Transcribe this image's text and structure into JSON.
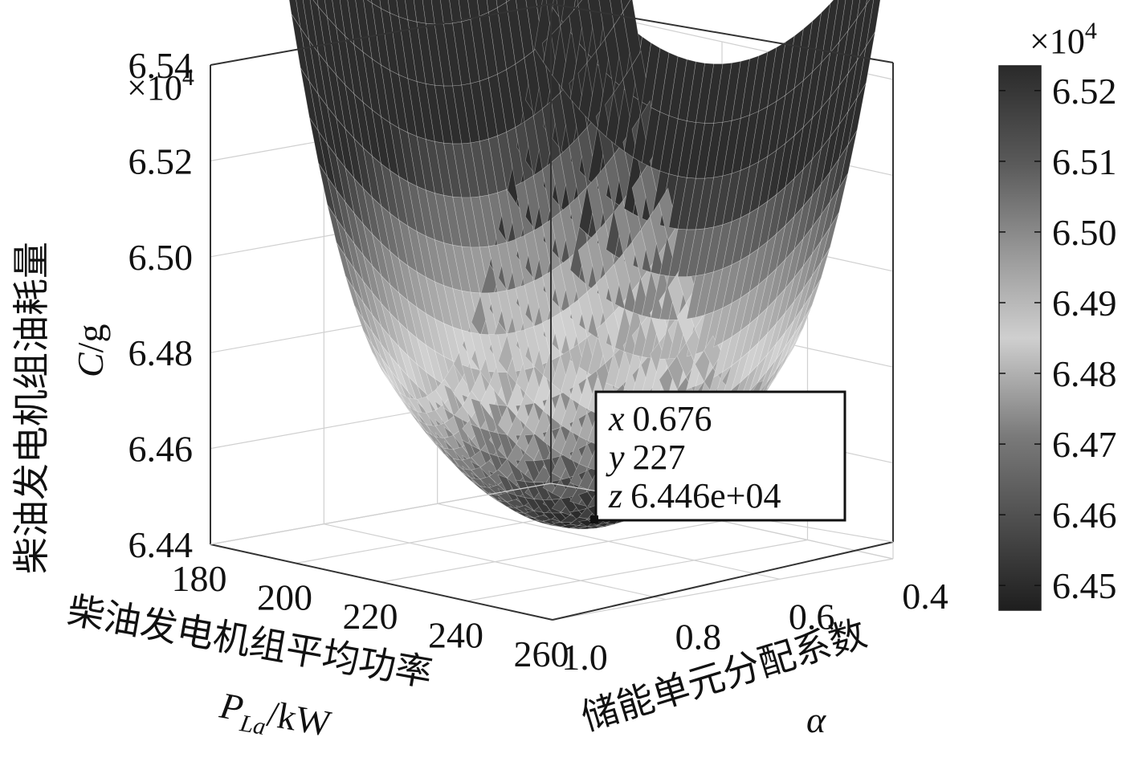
{
  "chart_data": {
    "type": "surface",
    "z_ylabel_cn": "柴油发电机组油耗量",
    "z_ylabel_sym": "C",
    "z_ylabel_unit": "/g",
    "z_multiplier_base": "×10",
    "z_multiplier_exp": "4",
    "z_ticks": [
      "6.44",
      "6.46",
      "6.48",
      "6.50",
      "6.52",
      "6.54"
    ],
    "z_range": [
      64400,
      65400
    ],
    "p_axis_cn": "柴油发电机组平均功率",
    "p_axis_sym": "P",
    "p_axis_sub": "La",
    "p_axis_unit": "/kW",
    "p_ticks": [
      "180",
      "200",
      "220",
      "240",
      "260"
    ],
    "p_range": [
      180,
      260
    ],
    "alpha_axis_cn": "储能单元分配系数",
    "alpha_axis_sym": "α",
    "alpha_ticks": [
      "0.4",
      "0.6",
      "0.8",
      "1.0"
    ],
    "alpha_range": [
      0.4,
      1.0
    ],
    "datatip": {
      "x_label": "x",
      "x_value": "0.676",
      "y_label": "y",
      "y_value": "227",
      "z_label": "z",
      "z_value": "6.446e+04"
    },
    "colorbar": {
      "multiplier_base": "×10",
      "multiplier_exp": "4",
      "ticks": [
        "6.52",
        "6.51",
        "6.50",
        "6.49",
        "6.48",
        "6.47",
        "6.46",
        "6.45"
      ]
    },
    "colormap": "gray",
    "grid": true
  }
}
